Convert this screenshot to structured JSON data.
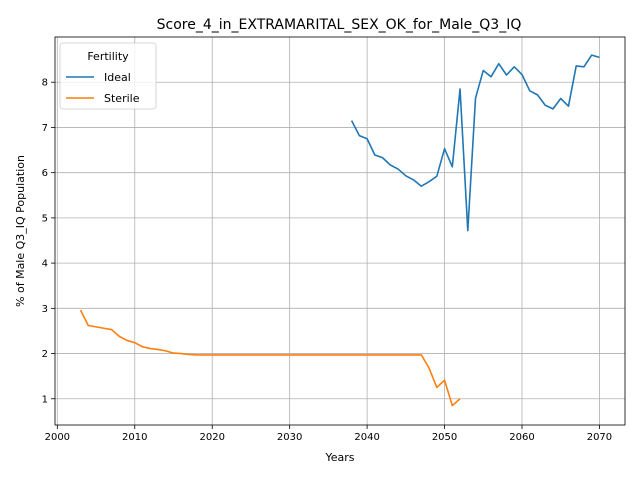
{
  "chart_data": {
    "type": "line",
    "title": "Score_4_in_EXTRAMARITAL_SEX_OK_for_Male_Q3_IQ",
    "xlabel": "Years",
    "ylabel": "% of Male Q3_IQ Population",
    "xlim": [
      1999.7,
      2073.3
    ],
    "ylim": [
      0.42,
      9.0
    ],
    "xticks": [
      2000,
      2010,
      2020,
      2030,
      2040,
      2050,
      2060,
      2070
    ],
    "yticks": [
      1,
      2,
      3,
      4,
      5,
      6,
      7,
      8
    ],
    "grid": true,
    "legend": {
      "title": "Fertility",
      "placement": "top-left"
    },
    "series": [
      {
        "name": "Ideal",
        "color": "#1f77b4",
        "x": [
          2038,
          2039,
          2040,
          2041,
          2042,
          2043,
          2044,
          2045,
          2046,
          2047,
          2048,
          2049,
          2050,
          2051,
          2052,
          2053,
          2054,
          2055,
          2056,
          2057,
          2058,
          2059,
          2060,
          2061,
          2062,
          2063,
          2064,
          2065,
          2066,
          2067,
          2068,
          2069,
          2070
        ],
        "y": [
          7.15,
          6.82,
          6.75,
          6.39,
          6.33,
          6.17,
          6.08,
          5.93,
          5.84,
          5.7,
          5.8,
          5.92,
          6.53,
          6.13,
          7.85,
          4.72,
          7.65,
          8.26,
          8.12,
          8.41,
          8.16,
          8.34,
          8.17,
          7.81,
          7.72,
          7.49,
          7.41,
          7.64,
          7.47,
          8.36,
          8.34,
          8.6,
          8.55
        ]
      },
      {
        "name": "Sterile",
        "color": "#ff7f0e",
        "x": [
          2003,
          2004,
          2005,
          2006,
          2007,
          2008,
          2009,
          2010,
          2011,
          2012,
          2013,
          2014,
          2015,
          2016,
          2017,
          2018,
          2019,
          2020,
          2025,
          2030,
          2035,
          2040,
          2045,
          2047,
          2048,
          2049,
          2050,
          2051,
          2052
        ],
        "y": [
          2.96,
          2.62,
          2.59,
          2.56,
          2.53,
          2.38,
          2.29,
          2.24,
          2.15,
          2.11,
          2.09,
          2.06,
          2.01,
          2.0,
          1.98,
          1.97,
          1.97,
          1.97,
          1.97,
          1.97,
          1.97,
          1.97,
          1.97,
          1.97,
          1.68,
          1.25,
          1.41,
          0.85,
          1.0
        ]
      }
    ]
  }
}
